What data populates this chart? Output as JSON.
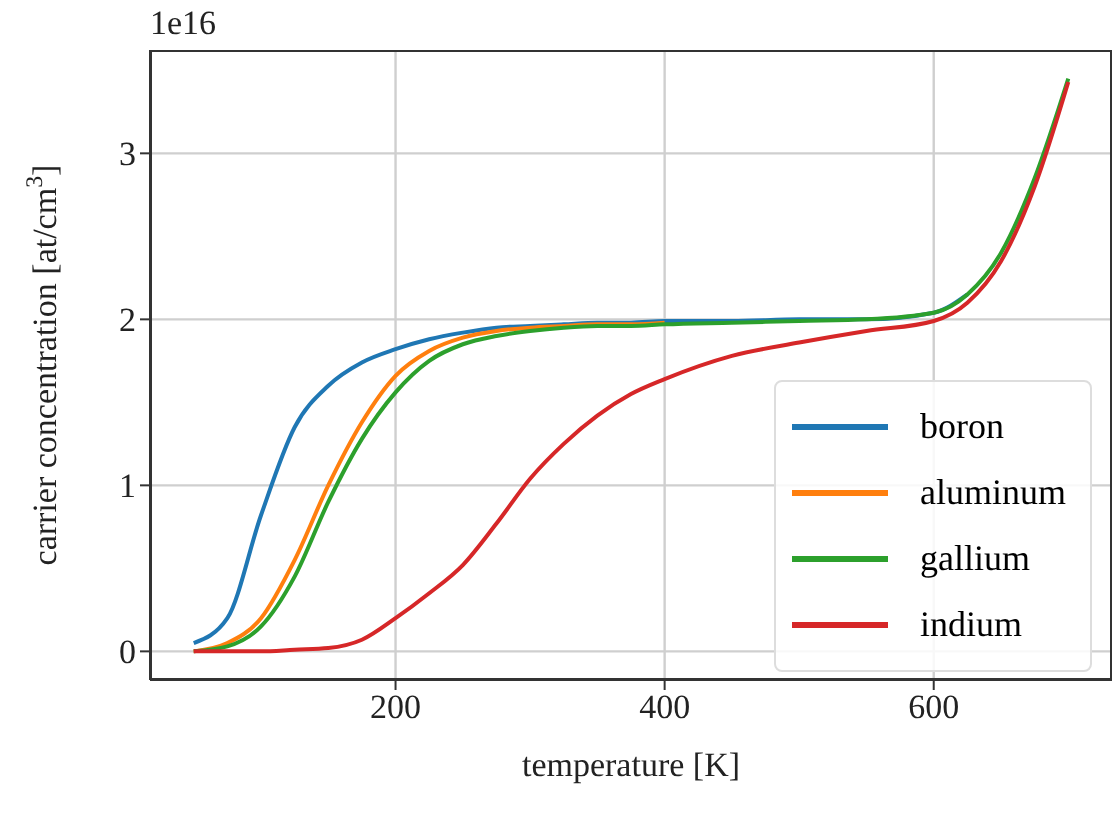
{
  "chart_data": {
    "type": "line",
    "xlabel": "temperature [K]",
    "ylabel": "carrier concentration [at/cm$^{3}$]",
    "annotations": [
      "1e16"
    ],
    "x": [
      50,
      75,
      100,
      125,
      150,
      175,
      200,
      225,
      250,
      275,
      300,
      325,
      350,
      375,
      400,
      450,
      500,
      550,
      600,
      625,
      650,
      675,
      700
    ],
    "series": [
      {
        "name": "boron",
        "color": "#1f77b4",
        "values": [
          0.05,
          0.2,
          0.82,
          1.35,
          1.6,
          1.74,
          1.82,
          1.88,
          1.92,
          1.95,
          1.96,
          1.97,
          1.98,
          1.98,
          1.99,
          1.99,
          2.0,
          2.0,
          2.04,
          2.15,
          null,
          null,
          null
        ]
      },
      {
        "name": "aluminum",
        "color": "#ff7f0e",
        "values": [
          0,
          0.05,
          0.2,
          0.55,
          1.0,
          1.38,
          1.66,
          1.81,
          1.89,
          1.93,
          1.95,
          1.96,
          1.97,
          1.97,
          1.98,
          null,
          null,
          null,
          null,
          null,
          null,
          null,
          null
        ]
      },
      {
        "name": "gallium",
        "color": "#2ca02c",
        "values": [
          0,
          0.03,
          0.15,
          0.45,
          0.9,
          1.28,
          1.56,
          1.75,
          1.85,
          1.9,
          1.93,
          1.95,
          1.96,
          1.96,
          1.97,
          1.98,
          1.99,
          2.0,
          2.04,
          2.15,
          2.4,
          2.85,
          3.45
        ]
      },
      {
        "name": "indium",
        "color": "#d62728",
        "values": [
          0,
          0,
          0,
          0.01,
          0.02,
          0.07,
          0.2,
          0.35,
          0.52,
          0.77,
          1.04,
          1.25,
          1.42,
          1.55,
          1.64,
          1.78,
          1.86,
          1.93,
          1.99,
          2.1,
          2.35,
          2.8,
          3.43
        ]
      }
    ],
    "xlim": [
      17.5,
      732.5
    ],
    "xticks": [
      200,
      400,
      600
    ],
    "ylim": [
      -0.1725,
      3.6225
    ],
    "yticks": [
      0,
      1,
      2,
      3
    ],
    "grid": true,
    "legend": "bottom right"
  }
}
